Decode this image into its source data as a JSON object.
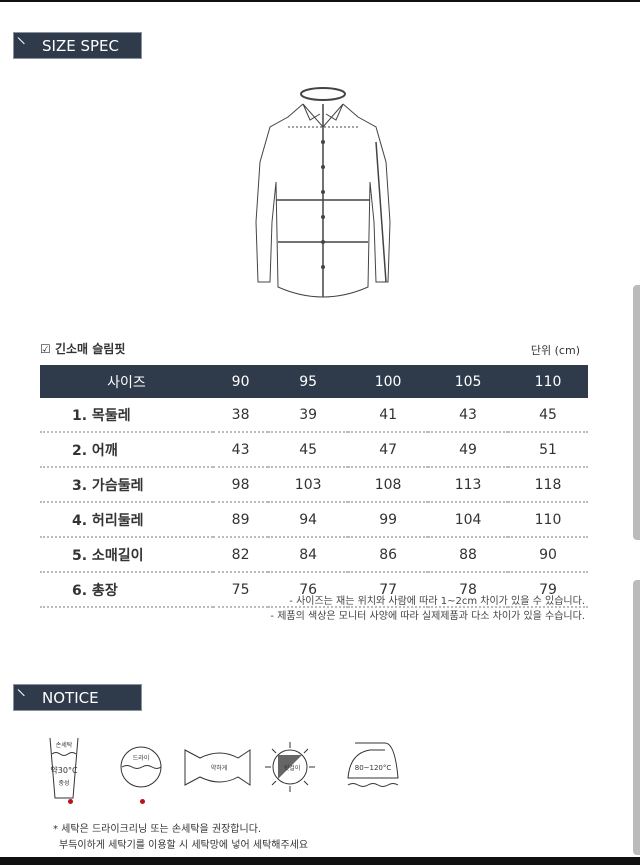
{
  "size_spec": {
    "header": "SIZE SPEC"
  },
  "fit": {
    "title": "긴소매 슬림핏",
    "unit": "단위 (cm)",
    "icon": "checkbox-pen-icon"
  },
  "table": {
    "headers": [
      "사이즈",
      "90",
      "95",
      "100",
      "105",
      "110"
    ],
    "rows": [
      [
        "1. 목둘레",
        "38",
        "39",
        "41",
        "43",
        "45"
      ],
      [
        "2. 어깨",
        "43",
        "45",
        "47",
        "49",
        "51"
      ],
      [
        "3. 가슴둘레",
        "98",
        "103",
        "108",
        "113",
        "118"
      ],
      [
        "4. 허리둘레",
        "89",
        "94",
        "99",
        "104",
        "110"
      ],
      [
        "5. 소매길이",
        "82",
        "84",
        "86",
        "88",
        "90"
      ],
      [
        "6. 총장",
        "75",
        "76",
        "77",
        "78",
        "79"
      ]
    ]
  },
  "notes": [
    "- 사이즈는 재는 위치와 사람에 따라 1~2cm 차이가 있을 수 있습니다.",
    "- 제품의 색상은 모니터 사양에 따라 실제제품과 다소 차이가 있을 수습니다."
  ],
  "notice": {
    "header": "NOTICE"
  },
  "care": {
    "hand_wash": {
      "top": "손세탁",
      "temp": "약30°C",
      "bottom": "중성"
    },
    "dry": "드라이",
    "wring": "약하게",
    "sun": "뒷걸이",
    "iron": "80~120°C"
  },
  "wash_note": [
    "* 세탁은 드라이크리닝 또는 손세탁을 권장합니다.",
    "부득이하게 세탁기를 이용할 시 세탁망에 넣어 세탁해주세요"
  ],
  "colors": {
    "header_bg": "#2f3a4b",
    "dot": "#c0101a"
  }
}
